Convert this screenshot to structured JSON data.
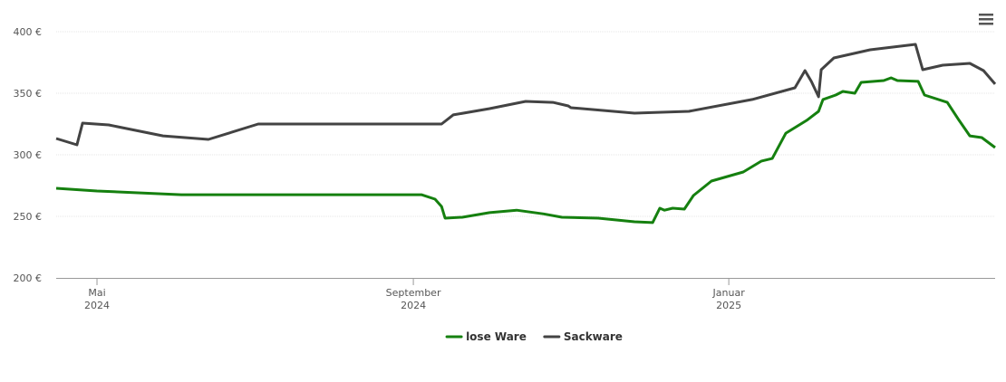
{
  "chart_data": {
    "type": "line",
    "xlim": [
      0,
      52
    ],
    "xticks": [
      {
        "value": 2.26,
        "label": "Mai 2024"
      },
      {
        "value": 19.78,
        "label": "September 2024"
      },
      {
        "value": 37.25,
        "label": "Januar 2025"
      }
    ],
    "ylim": [
      200,
      400
    ],
    "yticks": [
      {
        "value": 200,
        "label": "200 €"
      },
      {
        "value": 250,
        "label": "250 €"
      },
      {
        "value": 300,
        "label": "300 €"
      },
      {
        "value": 350,
        "label": "350 €"
      },
      {
        "value": 400,
        "label": "400 €"
      }
    ],
    "grid": true,
    "legend": "bottom",
    "series": [
      {
        "name": "lose Ware",
        "color": "#15800f",
        "x": [
          0,
          2.26,
          6.93,
          11.95,
          20.23,
          20.98,
          21.34,
          21.54,
          22.49,
          24,
          25.5,
          27,
          28.01,
          30.02,
          32.03,
          33.03,
          33.43,
          33.69,
          34.14,
          34.79,
          35.29,
          36.29,
          38.05,
          39.06,
          39.66,
          40.41,
          41.57,
          42.22,
          42.47,
          43.17,
          43.57,
          44.23,
          44.58,
          45.83,
          46.24,
          46.59,
          47.74,
          48.09,
          49.35,
          50,
          50.6,
          51.26,
          52
        ],
        "values": [
          272.8,
          270.6,
          267.6,
          267.6,
          267.6,
          264,
          258,
          248.5,
          249.3,
          253,
          255,
          252,
          249.3,
          248.5,
          245.6,
          244.9,
          256.6,
          255,
          256.6,
          255.9,
          266.9,
          278.7,
          286,
          294.9,
          297,
          317.6,
          328,
          335.3,
          344.9,
          348.5,
          351.5,
          350,
          358.8,
          360.3,
          362.5,
          360.3,
          359.6,
          348.5,
          342.6,
          328,
          315.4,
          314,
          305.9
        ]
      },
      {
        "name": "Sackware",
        "color": "#434343",
        "x": [
          0,
          1.15,
          1.46,
          2.91,
          5.92,
          8.43,
          11.19,
          16.97,
          21.34,
          21.99,
          24,
          26,
          27.51,
          28.36,
          28.51,
          32.03,
          35.04,
          38.55,
          40.91,
          41.47,
          41.82,
          42.22,
          42.37,
          43.07,
          45.08,
          47.59,
          47.99,
          49.1,
          50.6,
          51.36,
          52
        ],
        "values": [
          313.2,
          308.1,
          325.7,
          324.3,
          315.4,
          312.5,
          325,
          325,
          325,
          332.4,
          337.5,
          343.4,
          342.6,
          339.7,
          338.2,
          333.8,
          335.3,
          344.9,
          354.4,
          368.4,
          359.6,
          347.1,
          369.1,
          378.7,
          385.3,
          389.7,
          369.1,
          372.8,
          374.3,
          368.4,
          357.4
        ]
      }
    ]
  }
}
